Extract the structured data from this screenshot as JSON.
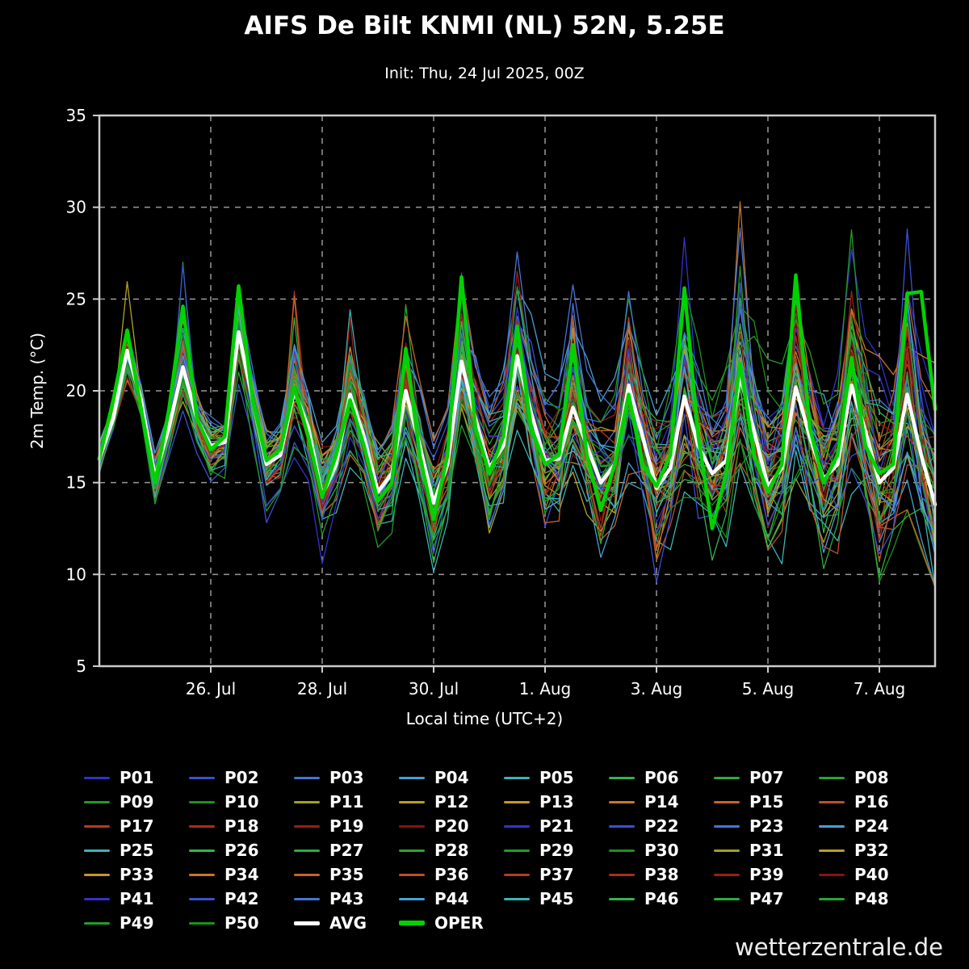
{
  "chart_data": {
    "type": "line",
    "title": "AIFS De Bilt KNMI (NL) 52N, 5.25E",
    "subtitle": "Init: Thu, 24 Jul 2025, 00Z",
    "xlabel": "Local time (UTC+2)",
    "ylabel": "2m Temp. (°C)",
    "watermark": "wetterzentrale.de",
    "ylim": [
      5,
      35
    ],
    "yticks": [
      5,
      10,
      15,
      20,
      25,
      30,
      35
    ],
    "grid_yticks": [
      10,
      15,
      20,
      25,
      30
    ],
    "x_hours_range": [
      0,
      360
    ],
    "x_step_hours": 6,
    "xticks": [
      {
        "hour": 48,
        "label": "26. Jul"
      },
      {
        "hour": 96,
        "label": "28. Jul"
      },
      {
        "hour": 144,
        "label": "30. Jul"
      },
      {
        "hour": 192,
        "label": "1. Aug"
      },
      {
        "hour": 240,
        "label": "3. Aug"
      },
      {
        "hour": 288,
        "label": "5. Aug"
      },
      {
        "hour": 336,
        "label": "7. Aug"
      }
    ],
    "background": "#000000",
    "grid_color": "#999999",
    "frame_color": "#cccccc",
    "text_color": "#ffffff",
    "series": [
      {
        "name": "AVG",
        "color": "#ffffff",
        "width": 4.5,
        "values": [
          16.3,
          18.5,
          22.2,
          19.5,
          15.3,
          18.0,
          21.3,
          18.5,
          17.0,
          17.2,
          23.2,
          19.5,
          16.0,
          16.5,
          20.0,
          18.0,
          14.3,
          16.0,
          19.8,
          17.5,
          14.5,
          15.5,
          20.0,
          17.0,
          13.9,
          16.0,
          21.6,
          18.5,
          15.8,
          17.0,
          21.9,
          18.8,
          16.2,
          16.3,
          19.1,
          17.0,
          15.0,
          16.0,
          20.3,
          17.5,
          14.7,
          15.8,
          19.7,
          17.0,
          15.5,
          16.2,
          20.8,
          17.8,
          14.8,
          15.8,
          20.2,
          17.5,
          15.2,
          16.0,
          20.3,
          17.8,
          15.0,
          15.8,
          19.8,
          16.5,
          13.8
        ]
      },
      {
        "name": "OPER",
        "color": "#00d200",
        "width": 4.5,
        "values": [
          16.3,
          19.5,
          23.3,
          19.0,
          15.0,
          19.0,
          24.6,
          18.5,
          16.8,
          17.5,
          25.7,
          19.5,
          16.2,
          16.8,
          20.2,
          17.5,
          14.2,
          16.5,
          19.5,
          17.0,
          14.0,
          15.0,
          22.3,
          16.5,
          13.0,
          16.5,
          26.2,
          18.0,
          15.5,
          17.5,
          23.5,
          18.0,
          16.0,
          16.5,
          22.5,
          16.5,
          13.5,
          16.0,
          19.8,
          16.0,
          14.8,
          16.5,
          25.6,
          17.5,
          12.5,
          15.5,
          21.5,
          16.5,
          14.5,
          16.0,
          26.3,
          18.0,
          15.0,
          16.5,
          21.8,
          17.0,
          15.5,
          16.0,
          25.3,
          25.4,
          19.0
        ]
      }
    ],
    "members": {
      "width": 1.3,
      "synthesis": {
        "seed": 1234,
        "seed_step": 77
      },
      "names": [
        "P01",
        "P02",
        "P03",
        "P04",
        "P05",
        "P06",
        "P07",
        "P08",
        "P09",
        "P10",
        "P11",
        "P12",
        "P13",
        "P14",
        "P15",
        "P16",
        "P17",
        "P18",
        "P19",
        "P20",
        "P21",
        "P22",
        "P23",
        "P24",
        "P25",
        "P26",
        "P27",
        "P28",
        "P29",
        "P30",
        "P31",
        "P32",
        "P33",
        "P34",
        "P35",
        "P36",
        "P37",
        "P38",
        "P39",
        "P40",
        "P41",
        "P42",
        "P43",
        "P44",
        "P45",
        "P46",
        "P47",
        "P48",
        "P49",
        "P50"
      ],
      "colors": [
        "#3232cd",
        "#3c50d2",
        "#4673d7",
        "#46a0d2",
        "#3cb4b4",
        "#32b450",
        "#2dad3c",
        "#28a532",
        "#239b28",
        "#1e911e",
        "#a0a028",
        "#b4a028",
        "#c89628",
        "#c87828",
        "#c86428",
        "#be5028",
        "#b43c23",
        "#aa2d1e",
        "#9b1e19",
        "#871414",
        "#3232cd",
        "#3c50d2",
        "#4673d7",
        "#46a0d2",
        "#3cb4b4",
        "#32b450",
        "#2dad3c",
        "#28a532",
        "#239b28",
        "#1e911e",
        "#a0a028",
        "#b4a028",
        "#c89628",
        "#c87828",
        "#c86428",
        "#be5028",
        "#b43c23",
        "#aa2d1e",
        "#9b1e19",
        "#871414",
        "#3232cd",
        "#3c50d2",
        "#4673d7",
        "#46a0d2",
        "#3cb4b4",
        "#32b450",
        "#2dad3c",
        "#28a532",
        "#239b28",
        "#1e911e"
      ]
    }
  }
}
